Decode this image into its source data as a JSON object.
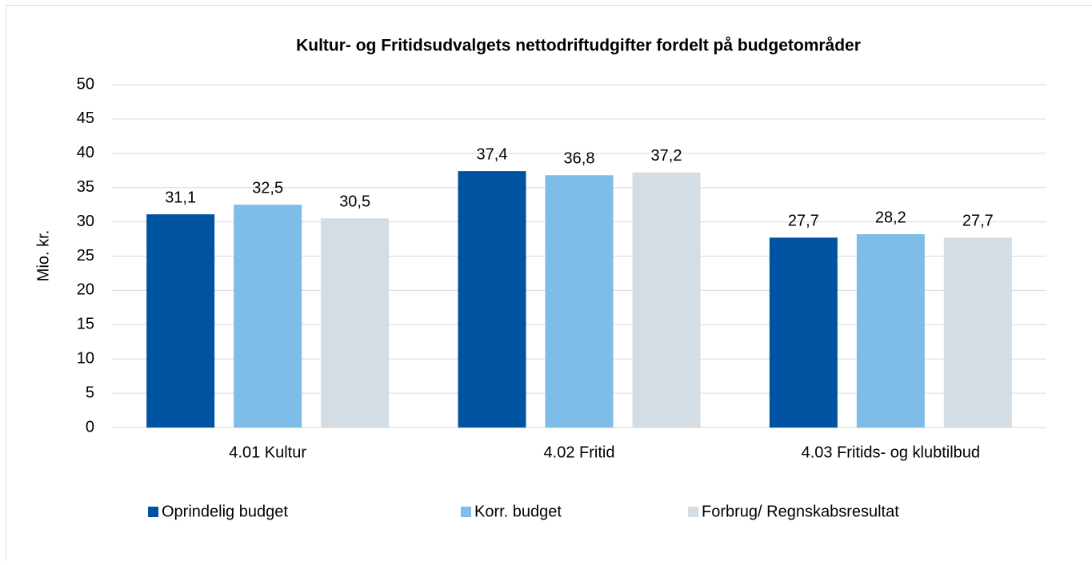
{
  "chart_data": {
    "type": "bar",
    "title": "Kultur- og Fritidsudvalgets nettodriftudgifter fordelt på budgetområder",
    "y_label": "Mio. kr.",
    "categories": [
      "4.01 Kultur",
      "4.02 Fritid",
      "4.03 Fritids- og klubtilbud"
    ],
    "series": [
      {
        "name": "Oprindelig budget",
        "color": "#0053a0",
        "values": [
          31.1,
          37.4,
          27.7
        ],
        "value_labels": [
          "31,1",
          "37,4",
          "27,7"
        ]
      },
      {
        "name": "Korr. budget",
        "color": "#7dbde8",
        "values": [
          32.5,
          36.8,
          28.2
        ],
        "value_labels": [
          "32,5",
          "36,8",
          "28,2"
        ]
      },
      {
        "name": "Forbrug/ Regnskabsresultat",
        "color": "#d3dde3",
        "values": [
          30.5,
          37.2,
          27.7
        ],
        "value_labels": [
          "30,5",
          "37,2",
          "27,7"
        ]
      }
    ],
    "ylim": [
      0,
      50
    ],
    "yticks": [
      0,
      5,
      10,
      15,
      20,
      25,
      30,
      35,
      40,
      45,
      50
    ],
    "grid": true,
    "legend": "bottom"
  }
}
